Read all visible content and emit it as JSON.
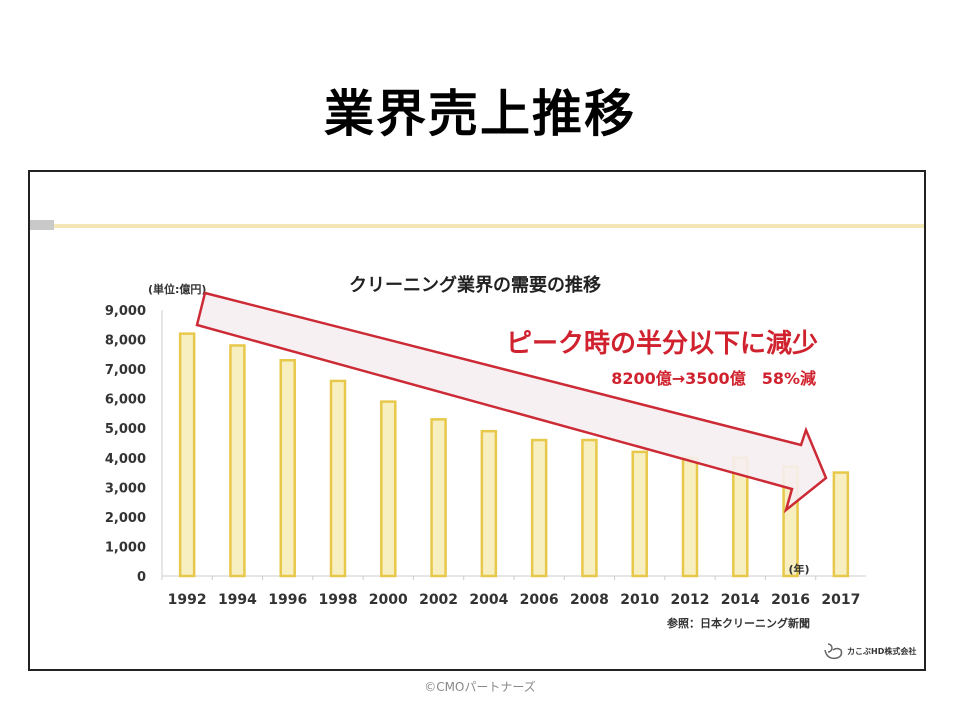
{
  "slide_title": "業界売上推移",
  "footer": "©CMOパートナーズ",
  "logo_text": "カこぶHD株式会社",
  "chart_data": {
    "type": "bar",
    "title": "クリーニング業界の需要の推移",
    "unit_label": "(単位:億円)",
    "xlabel": "(年)",
    "ylabel": "",
    "ylim": [
      0,
      9000
    ],
    "yticks": [
      0,
      1000,
      2000,
      3000,
      4000,
      5000,
      6000,
      7000,
      8000,
      9000
    ],
    "ytick_labels": [
      "0",
      "1,000",
      "2,000",
      "3,000",
      "4,000",
      "5,000",
      "6,000",
      "7,000",
      "8,000",
      "9,000"
    ],
    "categories": [
      "1992",
      "1994",
      "1996",
      "1998",
      "2000",
      "2002",
      "2004",
      "2006",
      "2008",
      "2010",
      "2012",
      "2014",
      "2016",
      "2017"
    ],
    "values": [
      8200,
      7800,
      7300,
      6600,
      5900,
      5300,
      4900,
      4600,
      4600,
      4200,
      4000,
      4000,
      3700,
      3500
    ],
    "grid": false,
    "annotation_headline": "ピーク時の半分以下に減少",
    "annotation_detail": "8200億→3500億　58%減",
    "source": "参照：日本クリーニング新聞",
    "colors": {
      "bar_fill": "#f7efc0",
      "bar_edge": "#e8c84a",
      "arrow_edge": "#cc2b36",
      "arrow_fill": "#f6eef2",
      "annotation": "#d0222e"
    }
  }
}
